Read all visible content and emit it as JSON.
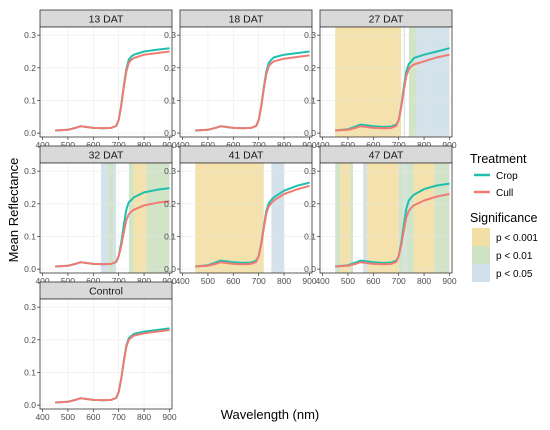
{
  "figure": {
    "xlabel": "Wavelength (nm)",
    "ylabel": "Mean Reflectance"
  },
  "legend": {
    "treatment": {
      "title": "Treatment",
      "items": [
        {
          "label": "Crop",
          "color": "#1fbfae"
        },
        {
          "label": "Cull",
          "color": "#ef7b72"
        }
      ]
    },
    "significance": {
      "title": "Significance",
      "items": [
        {
          "label": "p < 0.001",
          "color": "#f3dfa6"
        },
        {
          "label": "p < 0.01",
          "color": "#cfe3c4"
        },
        {
          "label": "p < 0.05",
          "color": "#d1e0ea"
        }
      ]
    }
  },
  "colors": {
    "panel_bg": "#ffffff",
    "grid": "#e6e6e6",
    "strip_bg": "#d9d9d9",
    "frame": "#333333"
  },
  "chart_data": {
    "type": "line",
    "x": [
      450,
      500,
      530,
      550,
      570,
      600,
      640,
      670,
      690,
      700,
      710,
      720,
      730,
      740,
      750,
      760,
      800,
      850,
      900
    ],
    "xlim": [
      390,
      910
    ],
    "ylim": [
      -0.012,
      0.325
    ],
    "xticks": [
      400,
      500,
      600,
      700,
      800,
      900
    ],
    "yticks": [
      0.0,
      0.1,
      0.2,
      0.3
    ],
    "xtick_labels": [
      "400",
      "500",
      "600",
      "700",
      "800",
      "900"
    ],
    "ytick_labels": [
      "0.0",
      "0.1",
      "0.2",
      "0.3"
    ],
    "panels": [
      {
        "title": "13 DAT",
        "bands": [],
        "series": [
          {
            "name": "Crop",
            "values": [
              0.008,
              0.01,
              0.016,
              0.021,
              0.019,
              0.016,
              0.015,
              0.016,
              0.022,
              0.04,
              0.085,
              0.145,
              0.195,
              0.225,
              0.235,
              0.24,
              0.25,
              0.255,
              0.26
            ]
          },
          {
            "name": "Cull",
            "values": [
              0.008,
              0.01,
              0.016,
              0.021,
              0.019,
              0.016,
              0.015,
              0.016,
              0.022,
              0.04,
              0.083,
              0.14,
              0.188,
              0.215,
              0.225,
              0.23,
              0.24,
              0.245,
              0.25
            ]
          }
        ]
      },
      {
        "title": "18 DAT",
        "bands": [],
        "series": [
          {
            "name": "Crop",
            "values": [
              0.008,
              0.01,
              0.016,
              0.021,
              0.019,
              0.016,
              0.015,
              0.016,
              0.022,
              0.04,
              0.082,
              0.14,
              0.188,
              0.215,
              0.225,
              0.232,
              0.24,
              0.245,
              0.25
            ]
          },
          {
            "name": "Cull",
            "values": [
              0.008,
              0.01,
              0.016,
              0.021,
              0.019,
              0.016,
              0.015,
              0.016,
              0.022,
              0.04,
              0.08,
              0.135,
              0.18,
              0.205,
              0.214,
              0.22,
              0.228,
              0.233,
              0.238
            ]
          }
        ]
      },
      {
        "title": "27 DAT",
        "bands": [
          {
            "x0": 450,
            "x1": 710,
            "level": "p < 0.001"
          },
          {
            "x0": 720,
            "x1": 725,
            "level": "p < 0.05"
          },
          {
            "x0": 740,
            "x1": 770,
            "level": "p < 0.01"
          },
          {
            "x0": 770,
            "x1": 900,
            "level": "p < 0.05"
          }
        ],
        "series": [
          {
            "name": "Crop",
            "values": [
              0.008,
              0.012,
              0.02,
              0.026,
              0.024,
              0.021,
              0.019,
              0.02,
              0.026,
              0.04,
              0.082,
              0.14,
              0.188,
              0.212,
              0.22,
              0.23,
              0.24,
              0.25,
              0.26
            ]
          },
          {
            "name": "Cull",
            "values": [
              0.008,
              0.01,
              0.016,
              0.021,
              0.019,
              0.016,
              0.015,
              0.016,
              0.022,
              0.04,
              0.078,
              0.13,
              0.175,
              0.196,
              0.205,
              0.21,
              0.22,
              0.232,
              0.24
            ]
          }
        ]
      },
      {
        "title": "32 DAT",
        "bands": [
          {
            "x0": 630,
            "x1": 660,
            "level": "p < 0.05"
          },
          {
            "x0": 660,
            "x1": 680,
            "level": "p < 0.01"
          },
          {
            "x0": 680,
            "x1": 690,
            "level": "p < 0.05"
          },
          {
            "x0": 740,
            "x1": 760,
            "level": "p < 0.01"
          },
          {
            "x0": 760,
            "x1": 810,
            "level": "p < 0.001"
          },
          {
            "x0": 810,
            "x1": 900,
            "level": "p < 0.01"
          }
        ],
        "series": [
          {
            "name": "Crop",
            "values": [
              0.008,
              0.01,
              0.016,
              0.021,
              0.019,
              0.016,
              0.015,
              0.016,
              0.022,
              0.04,
              0.08,
              0.135,
              0.182,
              0.205,
              0.212,
              0.22,
              0.235,
              0.243,
              0.248
            ]
          },
          {
            "name": "Cull",
            "values": [
              0.008,
              0.01,
              0.016,
              0.021,
              0.019,
              0.016,
              0.015,
              0.016,
              0.022,
              0.04,
              0.07,
              0.112,
              0.15,
              0.168,
              0.176,
              0.182,
              0.195,
              0.203,
              0.208
            ]
          }
        ]
      },
      {
        "title": "41 DAT",
        "bands": [
          {
            "x0": 450,
            "x1": 720,
            "level": "p < 0.001"
          },
          {
            "x0": 750,
            "x1": 800,
            "level": "p < 0.05"
          }
        ],
        "series": [
          {
            "name": "Crop",
            "values": [
              0.008,
              0.012,
              0.02,
              0.026,
              0.024,
              0.021,
              0.019,
              0.02,
              0.026,
              0.04,
              0.078,
              0.13,
              0.178,
              0.202,
              0.212,
              0.22,
              0.24,
              0.255,
              0.265
            ]
          },
          {
            "name": "Cull",
            "values": [
              0.008,
              0.01,
              0.016,
              0.021,
              0.019,
              0.016,
              0.015,
              0.016,
              0.022,
              0.04,
              0.075,
              0.125,
              0.17,
              0.192,
              0.202,
              0.21,
              0.23,
              0.244,
              0.255
            ]
          }
        ]
      },
      {
        "title": "47 DAT",
        "bands": [
          {
            "x0": 450,
            "x1": 470,
            "level": "p < 0.01"
          },
          {
            "x0": 470,
            "x1": 510,
            "level": "p < 0.001"
          },
          {
            "x0": 510,
            "x1": 520,
            "level": "p < 0.01"
          },
          {
            "x0": 560,
            "x1": 575,
            "level": "p < 0.05"
          },
          {
            "x0": 575,
            "x1": 700,
            "level": "p < 0.001"
          },
          {
            "x0": 700,
            "x1": 720,
            "level": "p < 0.01"
          },
          {
            "x0": 720,
            "x1": 730,
            "level": "p < 0.05"
          },
          {
            "x0": 730,
            "x1": 760,
            "level": "p < 0.01"
          },
          {
            "x0": 760,
            "x1": 840,
            "level": "p < 0.001"
          },
          {
            "x0": 840,
            "x1": 900,
            "level": "p < 0.01"
          }
        ],
        "series": [
          {
            "name": "Crop",
            "values": [
              0.008,
              0.012,
              0.02,
              0.026,
              0.024,
              0.021,
              0.019,
              0.02,
              0.026,
              0.04,
              0.08,
              0.135,
              0.185,
              0.21,
              0.22,
              0.228,
              0.245,
              0.256,
              0.262
            ]
          },
          {
            "name": "Cull",
            "values": [
              0.008,
              0.01,
              0.016,
              0.021,
              0.019,
              0.016,
              0.015,
              0.016,
              0.022,
              0.04,
              0.072,
              0.118,
              0.158,
              0.178,
              0.188,
              0.195,
              0.21,
              0.222,
              0.23
            ]
          }
        ]
      },
      {
        "title": "Control",
        "bands": [],
        "series": [
          {
            "name": "Crop",
            "values": [
              0.008,
              0.01,
              0.016,
              0.021,
              0.019,
              0.016,
              0.015,
              0.016,
              0.022,
              0.04,
              0.08,
              0.135,
              0.182,
              0.205,
              0.212,
              0.218,
              0.225,
              0.23,
              0.235
            ]
          },
          {
            "name": "Cull",
            "values": [
              0.008,
              0.01,
              0.016,
              0.021,
              0.019,
              0.016,
              0.015,
              0.016,
              0.022,
              0.04,
              0.08,
              0.133,
              0.178,
              0.2,
              0.207,
              0.213,
              0.22,
              0.225,
              0.23
            ]
          }
        ]
      }
    ]
  }
}
